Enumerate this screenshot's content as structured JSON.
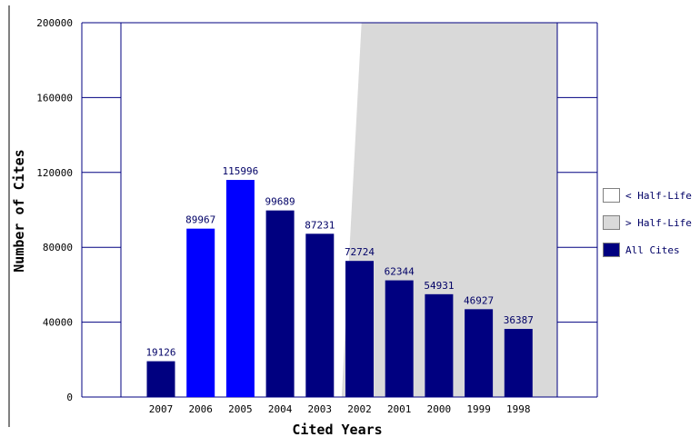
{
  "chart_data": {
    "type": "bar",
    "title": "",
    "xlabel": "Cited Years",
    "ylabel": "Number of Cites",
    "ylim": [
      0,
      200000
    ],
    "yticks": [
      0,
      40000,
      80000,
      120000,
      160000,
      200000
    ],
    "grid": false,
    "categories": [
      "2007",
      "2006",
      "2005",
      "2004",
      "2003",
      "2002",
      "2001",
      "2000",
      "1999",
      "1998"
    ],
    "values": [
      19126,
      89967,
      115996,
      99689,
      87231,
      72724,
      62344,
      54931,
      46927,
      36387
    ],
    "data_labels": [
      "19126",
      "89967",
      "115996",
      "99689",
      "87231",
      "72724",
      "62344",
      "54931",
      "46927",
      "36387"
    ],
    "bar_colors": [
      "#000080",
      "#0000ff",
      "#0000ff",
      "#000080",
      "#000080",
      "#000080",
      "#000080",
      "#000080",
      "#000080",
      "#000080"
    ],
    "half_life_boundary": {
      "bottom_x": 4.55,
      "top_x": 5.05
    },
    "legend": {
      "placement": "right",
      "items": [
        {
          "label": "< Half-Life",
          "color": "#ffffff"
        },
        {
          "label": "> Half-Life",
          "color": "#d9d9d9"
        },
        {
          "label": "All Cites",
          "color": "#000080"
        }
      ]
    },
    "colors": {
      "axis": "#000080",
      "shade": "#d9d9d9",
      "bar_default": "#000080",
      "bar_highlight": "#0000ff"
    }
  }
}
